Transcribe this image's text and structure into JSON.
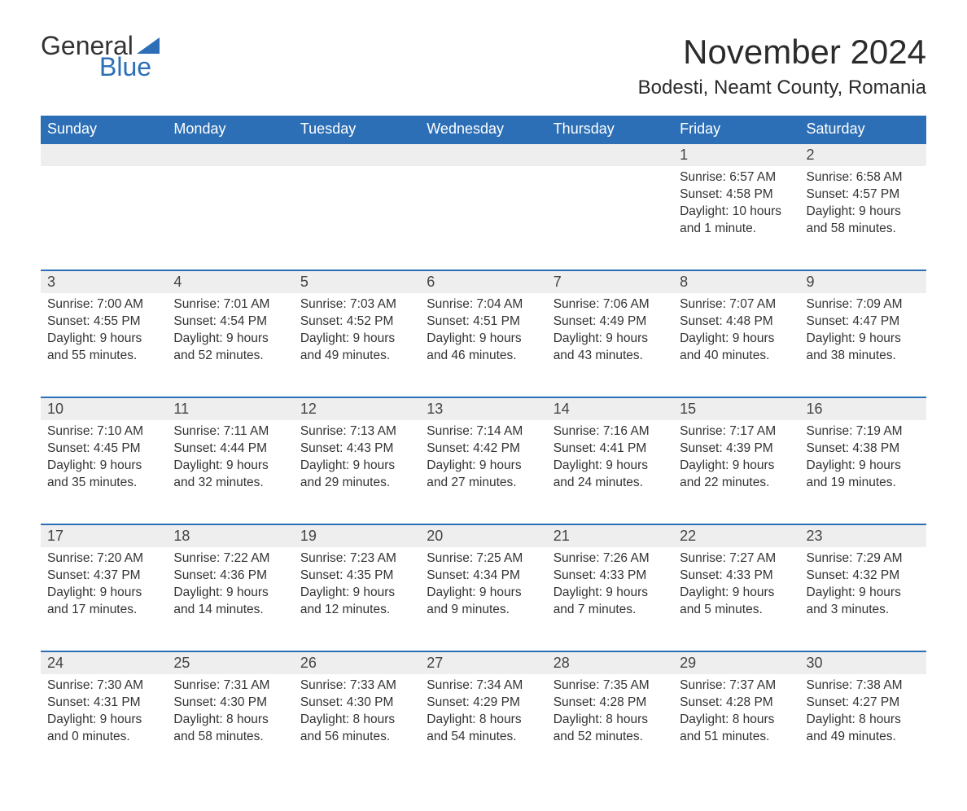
{
  "brand": {
    "word1": "General",
    "word2": "Blue",
    "logo_color": "#2c6fb6"
  },
  "title": "November 2024",
  "location": "Bodesti, Neamt County, Romania",
  "colors": {
    "header_bg": "#2c6fb6",
    "header_text": "#ffffff",
    "daynum_bg": "#eeeeee",
    "row_border": "#2c6fb6",
    "body_text": "#333333",
    "page_bg": "#ffffff"
  },
  "fonts": {
    "body_family": "Arial",
    "title_size_pt": 32,
    "location_size_pt": 18,
    "header_size_pt": 14,
    "cell_size_pt": 12
  },
  "day_headers": [
    "Sunday",
    "Monday",
    "Tuesday",
    "Wednesday",
    "Thursday",
    "Friday",
    "Saturday"
  ],
  "weeks": [
    [
      null,
      null,
      null,
      null,
      null,
      {
        "n": "1",
        "sunrise": "Sunrise: 6:57 AM",
        "sunset": "Sunset: 4:58 PM",
        "daylight": "Daylight: 10 hours and 1 minute."
      },
      {
        "n": "2",
        "sunrise": "Sunrise: 6:58 AM",
        "sunset": "Sunset: 4:57 PM",
        "daylight": "Daylight: 9 hours and 58 minutes."
      }
    ],
    [
      {
        "n": "3",
        "sunrise": "Sunrise: 7:00 AM",
        "sunset": "Sunset: 4:55 PM",
        "daylight": "Daylight: 9 hours and 55 minutes."
      },
      {
        "n": "4",
        "sunrise": "Sunrise: 7:01 AM",
        "sunset": "Sunset: 4:54 PM",
        "daylight": "Daylight: 9 hours and 52 minutes."
      },
      {
        "n": "5",
        "sunrise": "Sunrise: 7:03 AM",
        "sunset": "Sunset: 4:52 PM",
        "daylight": "Daylight: 9 hours and 49 minutes."
      },
      {
        "n": "6",
        "sunrise": "Sunrise: 7:04 AM",
        "sunset": "Sunset: 4:51 PM",
        "daylight": "Daylight: 9 hours and 46 minutes."
      },
      {
        "n": "7",
        "sunrise": "Sunrise: 7:06 AM",
        "sunset": "Sunset: 4:49 PM",
        "daylight": "Daylight: 9 hours and 43 minutes."
      },
      {
        "n": "8",
        "sunrise": "Sunrise: 7:07 AM",
        "sunset": "Sunset: 4:48 PM",
        "daylight": "Daylight: 9 hours and 40 minutes."
      },
      {
        "n": "9",
        "sunrise": "Sunrise: 7:09 AM",
        "sunset": "Sunset: 4:47 PM",
        "daylight": "Daylight: 9 hours and 38 minutes."
      }
    ],
    [
      {
        "n": "10",
        "sunrise": "Sunrise: 7:10 AM",
        "sunset": "Sunset: 4:45 PM",
        "daylight": "Daylight: 9 hours and 35 minutes."
      },
      {
        "n": "11",
        "sunrise": "Sunrise: 7:11 AM",
        "sunset": "Sunset: 4:44 PM",
        "daylight": "Daylight: 9 hours and 32 minutes."
      },
      {
        "n": "12",
        "sunrise": "Sunrise: 7:13 AM",
        "sunset": "Sunset: 4:43 PM",
        "daylight": "Daylight: 9 hours and 29 minutes."
      },
      {
        "n": "13",
        "sunrise": "Sunrise: 7:14 AM",
        "sunset": "Sunset: 4:42 PM",
        "daylight": "Daylight: 9 hours and 27 minutes."
      },
      {
        "n": "14",
        "sunrise": "Sunrise: 7:16 AM",
        "sunset": "Sunset: 4:41 PM",
        "daylight": "Daylight: 9 hours and 24 minutes."
      },
      {
        "n": "15",
        "sunrise": "Sunrise: 7:17 AM",
        "sunset": "Sunset: 4:39 PM",
        "daylight": "Daylight: 9 hours and 22 minutes."
      },
      {
        "n": "16",
        "sunrise": "Sunrise: 7:19 AM",
        "sunset": "Sunset: 4:38 PM",
        "daylight": "Daylight: 9 hours and 19 minutes."
      }
    ],
    [
      {
        "n": "17",
        "sunrise": "Sunrise: 7:20 AM",
        "sunset": "Sunset: 4:37 PM",
        "daylight": "Daylight: 9 hours and 17 minutes."
      },
      {
        "n": "18",
        "sunrise": "Sunrise: 7:22 AM",
        "sunset": "Sunset: 4:36 PM",
        "daylight": "Daylight: 9 hours and 14 minutes."
      },
      {
        "n": "19",
        "sunrise": "Sunrise: 7:23 AM",
        "sunset": "Sunset: 4:35 PM",
        "daylight": "Daylight: 9 hours and 12 minutes."
      },
      {
        "n": "20",
        "sunrise": "Sunrise: 7:25 AM",
        "sunset": "Sunset: 4:34 PM",
        "daylight": "Daylight: 9 hours and 9 minutes."
      },
      {
        "n": "21",
        "sunrise": "Sunrise: 7:26 AM",
        "sunset": "Sunset: 4:33 PM",
        "daylight": "Daylight: 9 hours and 7 minutes."
      },
      {
        "n": "22",
        "sunrise": "Sunrise: 7:27 AM",
        "sunset": "Sunset: 4:33 PM",
        "daylight": "Daylight: 9 hours and 5 minutes."
      },
      {
        "n": "23",
        "sunrise": "Sunrise: 7:29 AM",
        "sunset": "Sunset: 4:32 PM",
        "daylight": "Daylight: 9 hours and 3 minutes."
      }
    ],
    [
      {
        "n": "24",
        "sunrise": "Sunrise: 7:30 AM",
        "sunset": "Sunset: 4:31 PM",
        "daylight": "Daylight: 9 hours and 0 minutes."
      },
      {
        "n": "25",
        "sunrise": "Sunrise: 7:31 AM",
        "sunset": "Sunset: 4:30 PM",
        "daylight": "Daylight: 8 hours and 58 minutes."
      },
      {
        "n": "26",
        "sunrise": "Sunrise: 7:33 AM",
        "sunset": "Sunset: 4:30 PM",
        "daylight": "Daylight: 8 hours and 56 minutes."
      },
      {
        "n": "27",
        "sunrise": "Sunrise: 7:34 AM",
        "sunset": "Sunset: 4:29 PM",
        "daylight": "Daylight: 8 hours and 54 minutes."
      },
      {
        "n": "28",
        "sunrise": "Sunrise: 7:35 AM",
        "sunset": "Sunset: 4:28 PM",
        "daylight": "Daylight: 8 hours and 52 minutes."
      },
      {
        "n": "29",
        "sunrise": "Sunrise: 7:37 AM",
        "sunset": "Sunset: 4:28 PM",
        "daylight": "Daylight: 8 hours and 51 minutes."
      },
      {
        "n": "30",
        "sunrise": "Sunrise: 7:38 AM",
        "sunset": "Sunset: 4:27 PM",
        "daylight": "Daylight: 8 hours and 49 minutes."
      }
    ]
  ]
}
